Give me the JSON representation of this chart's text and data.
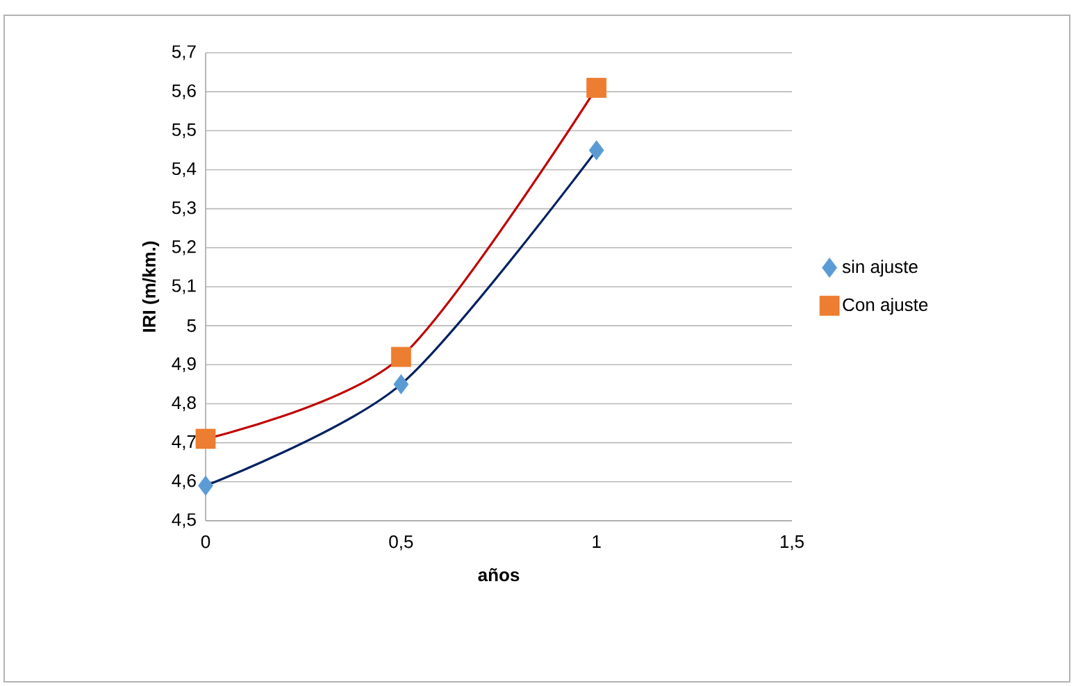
{
  "chart_data": {
    "type": "scatter",
    "xlabel": "años",
    "ylabel": "IRI (m/km.)",
    "x": [
      0,
      0.5,
      1
    ],
    "series": [
      {
        "name": "sin ajuste",
        "marker": "diamond",
        "color": "#5b9bd5",
        "values": [
          4.59,
          4.85,
          5.45
        ]
      },
      {
        "name": "Con ajuste",
        "marker": "square",
        "color": "#ed7d31",
        "values": [
          4.71,
          4.92,
          5.61
        ]
      },
      {
        "type": "line",
        "marker": "none",
        "color": "#002060",
        "values": [
          4.59,
          4.85,
          5.45
        ]
      },
      {
        "type": "line",
        "marker": "none",
        "color": "#c00000",
        "values": [
          4.71,
          4.92,
          5.61
        ]
      }
    ],
    "xlim": [
      0,
      1.5
    ],
    "xticks": [
      0,
      {
        "value": 0.5,
        "label": "0,5"
      },
      1,
      {
        "value": 1.5,
        "label": "1,5"
      }
    ],
    "ylim": [
      4.5,
      5.7
    ],
    "yticks": [
      {
        "value": 4.5,
        "label": "4,5"
      },
      {
        "value": 4.6,
        "label": "4,6"
      },
      {
        "value": 4.7,
        "label": "4,7"
      },
      {
        "value": 4.8,
        "label": "4,8"
      },
      {
        "value": 4.9,
        "label": "4,9"
      },
      5,
      {
        "value": 5.1,
        "label": "5,1"
      },
      {
        "value": 5.2,
        "label": "5,2"
      },
      {
        "value": 5.3,
        "label": "5,3"
      },
      {
        "value": 5.4,
        "label": "5,4"
      },
      {
        "value": 5.5,
        "label": "5,5"
      },
      {
        "value": 5.6,
        "label": "5,6"
      },
      {
        "value": 5.7,
        "label": "5,7"
      }
    ],
    "grid": "y",
    "legend": "right"
  }
}
